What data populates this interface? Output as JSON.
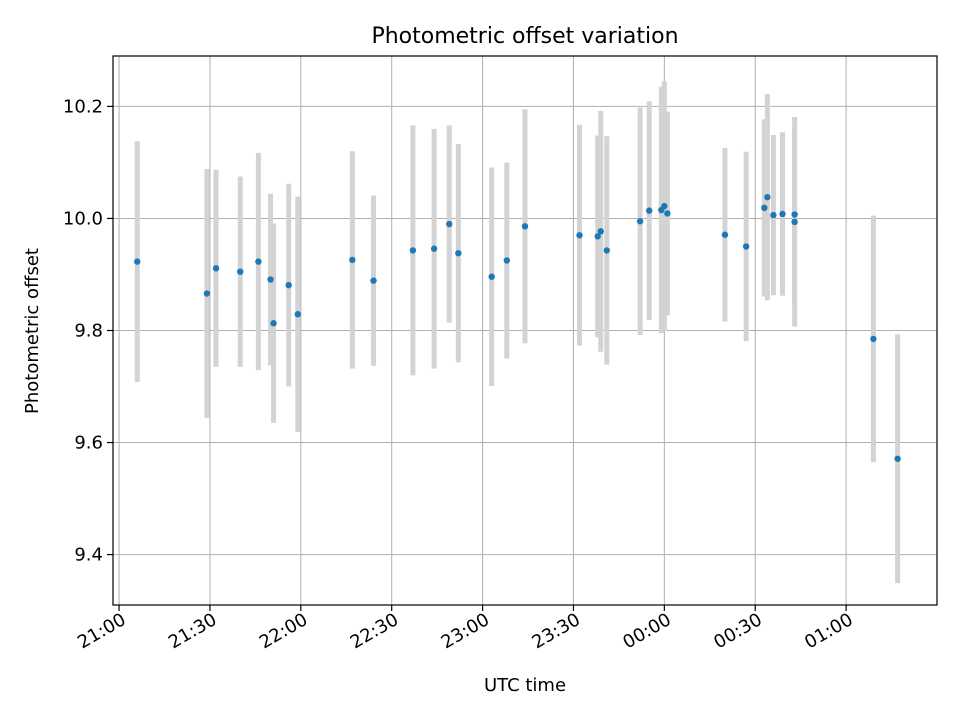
{
  "chart_data": {
    "type": "scatter",
    "title": "Photometric offset variation",
    "xlabel": "UTC time",
    "ylabel": "Photometric offset",
    "x_unit": "time of day (HH:MM, UTC), continuing past midnight",
    "xlim": [
      "20:58",
      "01:30"
    ],
    "ylim": [
      9.31,
      10.29
    ],
    "x_ticks": [
      "21:00",
      "21:30",
      "22:00",
      "22:30",
      "23:00",
      "23:30",
      "00:00",
      "00:30",
      "01:00"
    ],
    "y_ticks": [
      9.4,
      9.6,
      9.8,
      10.0,
      10.2
    ],
    "y_tick_labels": [
      "9.4",
      "9.6",
      "9.8",
      "10.0",
      "10.2"
    ],
    "grid": true,
    "marker_color": "#1f77b4",
    "errorbar_color": "#d3d3d3",
    "points": [
      {
        "x": "21:06",
        "y": 9.923,
        "err": 0.215
      },
      {
        "x": "21:29",
        "y": 9.866,
        "err": 0.222
      },
      {
        "x": "21:32",
        "y": 9.911,
        "err": 0.176
      },
      {
        "x": "21:40",
        "y": 9.905,
        "err": 0.17
      },
      {
        "x": "21:46",
        "y": 9.923,
        "err": 0.194
      },
      {
        "x": "21:50",
        "y": 9.891,
        "err": 0.153
      },
      {
        "x": "21:51",
        "y": 9.813,
        "err": 0.178
      },
      {
        "x": "21:56",
        "y": 9.881,
        "err": 0.181
      },
      {
        "x": "21:59",
        "y": 9.829,
        "err": 0.21
      },
      {
        "x": "22:17",
        "y": 9.926,
        "err": 0.194
      },
      {
        "x": "22:24",
        "y": 9.889,
        "err": 0.152
      },
      {
        "x": "22:37",
        "y": 9.943,
        "err": 0.223
      },
      {
        "x": "22:44",
        "y": 9.946,
        "err": 0.214
      },
      {
        "x": "22:49",
        "y": 9.99,
        "err": 0.176
      },
      {
        "x": "22:52",
        "y": 9.938,
        "err": 0.195
      },
      {
        "x": "23:03",
        "y": 9.896,
        "err": 0.195
      },
      {
        "x": "23:08",
        "y": 9.925,
        "err": 0.175
      },
      {
        "x": "23:14",
        "y": 9.986,
        "err": 0.209
      },
      {
        "x": "23:32",
        "y": 9.97,
        "err": 0.197
      },
      {
        "x": "23:38",
        "y": 9.968,
        "err": 0.18
      },
      {
        "x": "23:39",
        "y": 9.977,
        "err": 0.215
      },
      {
        "x": "23:41",
        "y": 9.943,
        "err": 0.204
      },
      {
        "x": "23:52",
        "y": 9.995,
        "err": 0.203
      },
      {
        "x": "23:55",
        "y": 10.014,
        "err": 0.195
      },
      {
        "x": "23:59",
        "y": 10.015,
        "err": 0.22
      },
      {
        "x": "00:00",
        "y": 10.022,
        "err": 0.223
      },
      {
        "x": "00:01",
        "y": 10.009,
        "err": 0.182
      },
      {
        "x": "00:20",
        "y": 9.971,
        "err": 0.155
      },
      {
        "x": "00:27",
        "y": 9.95,
        "err": 0.169
      },
      {
        "x": "00:33",
        "y": 10.019,
        "err": 0.158
      },
      {
        "x": "00:34",
        "y": 10.038,
        "err": 0.184
      },
      {
        "x": "00:36",
        "y": 10.006,
        "err": 0.143
      },
      {
        "x": "00:39",
        "y": 10.008,
        "err": 0.146
      },
      {
        "x": "00:43",
        "y": 9.994,
        "err": 0.187
      },
      {
        "x": "00:43",
        "y": 10.007,
        "err": 0.156
      },
      {
        "x": "01:09",
        "y": 9.785,
        "err": 0.22
      },
      {
        "x": "01:17",
        "y": 9.571,
        "err": 0.222
      }
    ]
  }
}
